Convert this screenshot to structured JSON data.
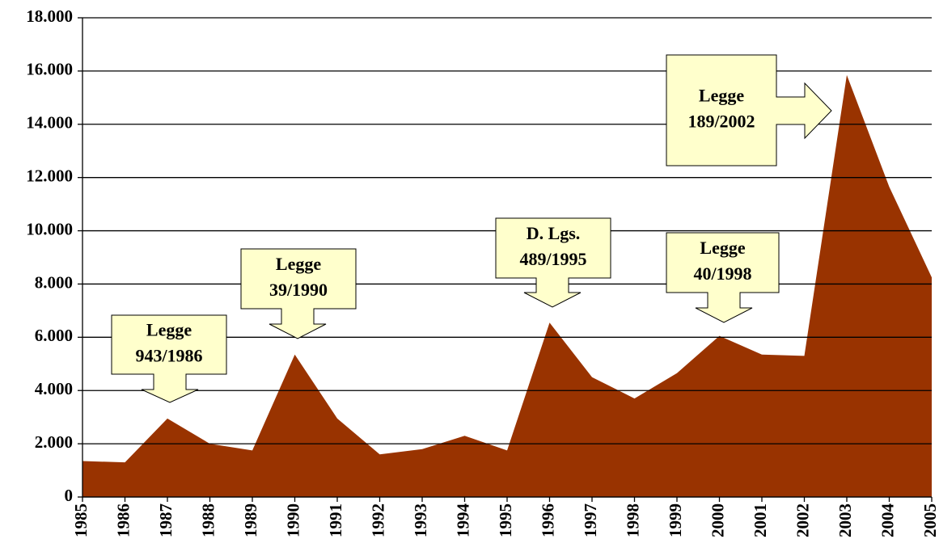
{
  "chart_data": {
    "type": "area",
    "categories": [
      "1985",
      "1986",
      "1987",
      "1988",
      "1989",
      "1990",
      "1991",
      "1992",
      "1993",
      "1994",
      "1995",
      "1996",
      "1997",
      "1998",
      "1999",
      "2000",
      "2001",
      "2002",
      "2003",
      "2004",
      "2005"
    ],
    "series": [
      {
        "color": "#993300",
        "values": [
          1350,
          1300,
          2950,
          2000,
          1750,
          5350,
          2950,
          1600,
          1800,
          2300,
          1750,
          6550,
          4500,
          3700,
          4650,
          6050,
          5350,
          5300,
          15850,
          11650,
          8250
        ]
      }
    ],
    "ylim": [
      0,
      18000
    ],
    "yticks": [
      0,
      {
        "value": 2000,
        "label": "2.000"
      },
      {
        "value": 4000,
        "label": "4.000"
      },
      {
        "value": 6000,
        "label": "6.000"
      },
      {
        "value": 8000,
        "label": "8.000"
      },
      {
        "value": 10000,
        "label": "10.000"
      },
      {
        "value": 12000,
        "label": "12.000"
      },
      {
        "value": 14000,
        "label": "14.000"
      },
      {
        "value": 16000,
        "label": "16.000"
      },
      {
        "value": 18000,
        "label": "18.000"
      }
    ],
    "grid": true,
    "annotations": [
      {
        "lines": [
          "Legge",
          "943/1986"
        ]
      },
      {
        "lines": [
          "Legge",
          "39/1990"
        ]
      },
      {
        "lines": [
          "D. Lgs.",
          "489/1995"
        ]
      },
      {
        "lines": [
          "Legge",
          "40/1998"
        ]
      },
      {
        "lines": [
          "Legge",
          "189/2002"
        ]
      }
    ]
  }
}
